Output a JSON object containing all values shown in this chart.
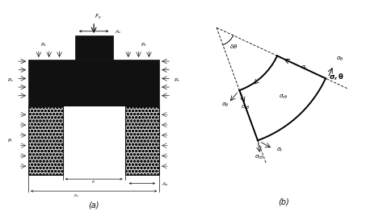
{
  "label_a": "(a)",
  "label_b": "(b)",
  "black": "#111111"
}
